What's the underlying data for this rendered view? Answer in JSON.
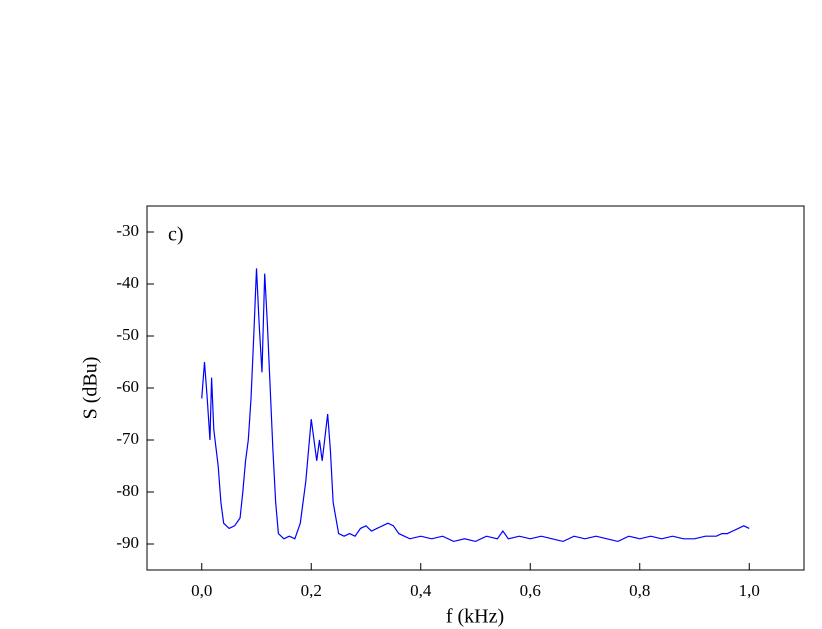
{
  "chart_data": {
    "type": "line",
    "annotation": "c)",
    "x_label": "f (kHz)",
    "y_label": "S (dBu)",
    "color": "#0000ff",
    "grid": false,
    "x": [
      0.0,
      0.005,
      0.01,
      0.015,
      0.018,
      0.022,
      0.03,
      0.035,
      0.04,
      0.05,
      0.06,
      0.07,
      0.075,
      0.08,
      0.085,
      0.09,
      0.095,
      0.1,
      0.105,
      0.11,
      0.115,
      0.12,
      0.125,
      0.13,
      0.135,
      0.14,
      0.15,
      0.16,
      0.17,
      0.18,
      0.19,
      0.2,
      0.205,
      0.21,
      0.215,
      0.22,
      0.23,
      0.235,
      0.24,
      0.25,
      0.26,
      0.27,
      0.28,
      0.29,
      0.3,
      0.31,
      0.32,
      0.33,
      0.34,
      0.35,
      0.36,
      0.38,
      0.4,
      0.42,
      0.44,
      0.46,
      0.48,
      0.5,
      0.52,
      0.54,
      0.55,
      0.56,
      0.58,
      0.6,
      0.62,
      0.64,
      0.66,
      0.68,
      0.7,
      0.72,
      0.74,
      0.76,
      0.78,
      0.8,
      0.82,
      0.84,
      0.86,
      0.88,
      0.9,
      0.92,
      0.94,
      0.95,
      0.96,
      0.97,
      0.98,
      0.99,
      1.0
    ],
    "values": [
      -62,
      -55,
      -62,
      -70,
      -58,
      -68,
      -75,
      -82,
      -86,
      -87,
      -86.5,
      -85,
      -80,
      -74,
      -70,
      -62,
      -50,
      -37,
      -48,
      -57,
      -38,
      -48,
      -60,
      -72,
      -82,
      -88,
      -89,
      -88.5,
      -89,
      -86,
      -78,
      -66,
      -70,
      -74,
      -70,
      -74,
      -65,
      -72,
      -82,
      -88,
      -88.5,
      -88,
      -88.5,
      -87,
      -86.5,
      -87.5,
      -87,
      -86.5,
      -86,
      -86.5,
      -88,
      -89,
      -88.5,
      -89,
      -88.5,
      -89.5,
      -89,
      -89.5,
      -88.5,
      -89,
      -87.5,
      -89,
      -88.5,
      -89,
      -88.5,
      -89,
      -89.5,
      -88.5,
      -89,
      -88.5,
      -89,
      -89.5,
      -88.5,
      -89,
      -88.5,
      -89,
      -88.5,
      -89,
      -89,
      -88.5,
      -88.5,
      -88,
      -88,
      -87.5,
      -87,
      -86.5,
      -87
    ],
    "xlim": [
      -0.1,
      1.1
    ],
    "xticks": [
      {
        "value": 0,
        "label": "0,0"
      },
      {
        "value": 0.2,
        "label": "0,2"
      },
      {
        "value": 0.4,
        "label": "0,4"
      },
      {
        "value": 0.6,
        "label": "0,6"
      },
      {
        "value": 0.8,
        "label": "0,8"
      },
      {
        "value": 1.0,
        "label": "1,0"
      }
    ],
    "ylim": [
      -95,
      -25
    ],
    "yticks": [
      -90,
      -80,
      -70,
      -60,
      -50,
      -40,
      -30
    ]
  }
}
